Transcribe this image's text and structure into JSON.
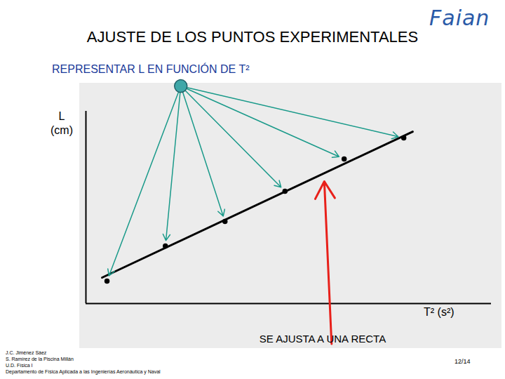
{
  "chart_data": {
    "type": "scatter",
    "title": "AJUSTE DE LOS PUNTOS EXPERIMENTALES",
    "subtitle": "REPRESENTAR L EN FUNCIÓN DE T²",
    "y_label": "L (cm)",
    "x_label": "T² (s²)",
    "annotation": "SE AJUSTA A UNA RECTA",
    "x": [
      5.2,
      19.6,
      34.3,
      49.1,
      63.7,
      78.4
    ],
    "values": [
      11.7,
      29.9,
      42.7,
      58.4,
      75.2,
      86.1
    ],
    "line": {
      "x": [
        4.0,
        80.6
      ],
      "values": [
        13.5,
        89.4
      ]
    },
    "xlim": [
      0,
      100
    ],
    "ylim": [
      0,
      100
    ],
    "xticks": [],
    "yticks": [],
    "tick_labels": false,
    "color": "#000000"
  },
  "slide": {
    "logo": "Faian",
    "footer": [
      "J.C. Jiménez Sáez",
      "S. Ramírez de la Piscina Millán",
      "U.D. Física I",
      "Departamento de Física Aplicada a las Ingenierías Aeronáutica y Naval"
    ],
    "page": "12/14"
  }
}
